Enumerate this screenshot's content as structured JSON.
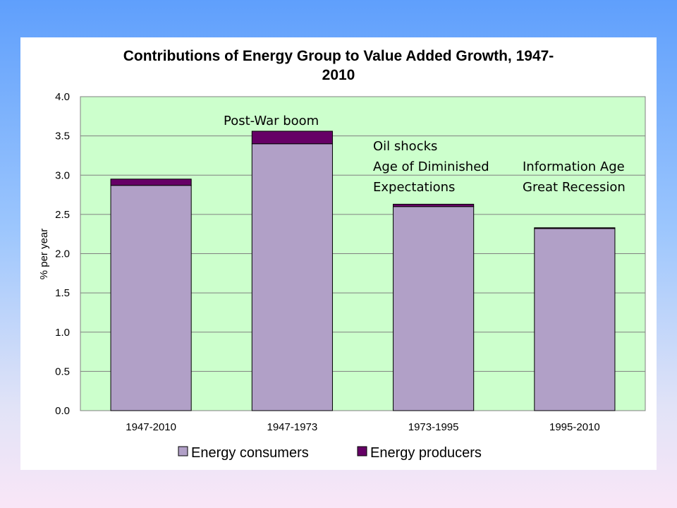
{
  "chart_data": {
    "type": "bar",
    "stacked": true,
    "title_lines": [
      "Contributions of Energy Group to Value Added Growth, 1947-",
      "2010"
    ],
    "xlabel": "",
    "ylabel": "% per year",
    "ylim": [
      0,
      4.0
    ],
    "yticks": [
      "0.0",
      "0.5",
      "1.0",
      "1.5",
      "2.0",
      "2.5",
      "3.0",
      "3.5",
      "4.0"
    ],
    "grid": true,
    "legend_position": "bottom",
    "categories": [
      "1947-2010",
      "1947-1973",
      "1973-1995",
      "1995-2010"
    ],
    "series": [
      {
        "name": "Energy consumers",
        "color": "#b1a0c7",
        "values": [
          2.87,
          3.4,
          2.6,
          2.32
        ]
      },
      {
        "name": "Energy producers",
        "color": "#660066",
        "values": [
          0.08,
          0.16,
          0.03,
          0.01
        ]
      }
    ],
    "annotations": [
      {
        "lines": [
          "Post-War boom"
        ]
      },
      {
        "lines": [
          "Oil shocks",
          "Age of Diminished",
          "Expectations"
        ]
      },
      {
        "lines": [
          "Information Age",
          "Great Recession"
        ]
      }
    ],
    "plot_background": "#ccffcc"
  }
}
